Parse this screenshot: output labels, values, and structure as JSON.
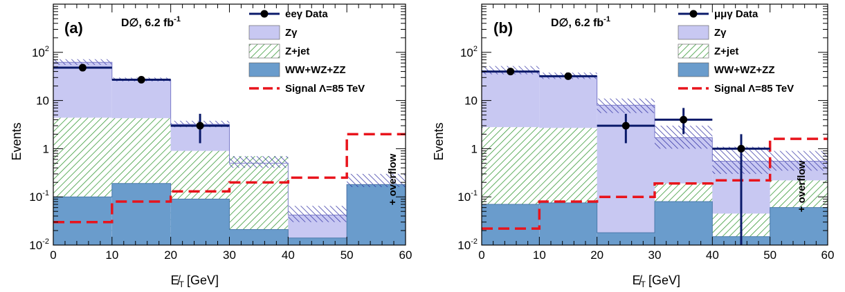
{
  "chart_data": [
    {
      "type": "histogram",
      "panel_label": "(a)",
      "experiment_label": "D∅, 6.2 fb",
      "experiment_label_sup": "-1",
      "xlabel": "E̸",
      "xlabel_sub": "T",
      "xlabel_unit": "[GeV]",
      "ylabel": "Events",
      "y_scale": "log",
      "xlim": [
        0,
        60
      ],
      "ylim": [
        0.01,
        1000
      ],
      "bin_edges": [
        0,
        10,
        20,
        30,
        40,
        50,
        60
      ],
      "x_ticks": [
        "0",
        "10",
        "20",
        "30",
        "40",
        "50",
        "60"
      ],
      "y_ticks": [
        {
          "base": "10",
          "exp": "-2",
          "value": 0.01
        },
        {
          "base": "10",
          "exp": "-1",
          "value": 0.1
        },
        {
          "base": "1",
          "exp": "",
          "value": 1
        },
        {
          "base": "10",
          "exp": "",
          "value": 10
        },
        {
          "base": "10",
          "exp": "2",
          "value": 100
        }
      ],
      "stack": {
        "wwwzzz": [
          0.1,
          0.19,
          0.09,
          0.021,
          0.014,
          0.18
        ],
        "zjet_cumulative": [
          4.4,
          4.3,
          0.9,
          0.7,
          0.014,
          0.18
        ],
        "zgamma_cumulative": [
          62,
          27,
          3.2,
          0.5,
          0.042,
          0.18
        ]
      },
      "uncertainty_band": [
        [
          55,
          72
        ],
        [
          25,
          30
        ],
        [
          2.8,
          3.8
        ],
        [
          0.4,
          0.7
        ],
        [
          0.03,
          0.065
        ],
        [
          0.16,
          0.3
        ]
      ],
      "data_points": {
        "x": [
          5,
          15,
          25
        ],
        "y": [
          48,
          27,
          3
        ],
        "y_err_low": [
          0,
          0,
          1.7
        ],
        "y_err_high": [
          0,
          0,
          2.3
        ],
        "bin_lines": [
          48,
          27,
          3
        ]
      },
      "signal": [
        0.03,
        0.08,
        0.13,
        0.2,
        0.25,
        2.0
      ],
      "overflow_label": "+ overflow",
      "legend": [
        {
          "label": "eeγ Data",
          "kind": "data"
        },
        {
          "label": "Zγ",
          "kind": "zgamma"
        },
        {
          "label": "Z+jet",
          "kind": "zjet"
        },
        {
          "label": "WW+WZ+ZZ",
          "kind": "wwwzzz"
        },
        {
          "label": "Signal Λ=85 TeV",
          "kind": "signal"
        }
      ]
    },
    {
      "type": "histogram",
      "panel_label": "(b)",
      "experiment_label": "D∅, 6.2 fb",
      "experiment_label_sup": "-1",
      "xlabel": "E̸",
      "xlabel_sub": "T",
      "xlabel_unit": "[GeV]",
      "ylabel": "Events",
      "y_scale": "log",
      "xlim": [
        0,
        60
      ],
      "ylim": [
        0.01,
        1000
      ],
      "bin_edges": [
        0,
        10,
        20,
        30,
        40,
        50,
        60
      ],
      "x_ticks": [
        "0",
        "10",
        "20",
        "30",
        "40",
        "50",
        "60"
      ],
      "y_ticks": [
        {
          "base": "10",
          "exp": "-2",
          "value": 0.01
        },
        {
          "base": "10",
          "exp": "-1",
          "value": 0.1
        },
        {
          "base": "1",
          "exp": "",
          "value": 1
        },
        {
          "base": "10",
          "exp": "",
          "value": 10
        },
        {
          "base": "10",
          "exp": "2",
          "value": 100
        }
      ],
      "stack": {
        "wwwzzz": [
          0.07,
          0.075,
          0.018,
          0.08,
          0.015,
          0.06
        ],
        "zjet_cumulative": [
          2.8,
          2.7,
          0.018,
          0.19,
          0.045,
          0.22
        ],
        "zgamma_cumulative": [
          40,
          32,
          8,
          1.7,
          0.55,
          0.55
        ]
      },
      "uncertainty_band": [
        [
          35,
          52
        ],
        [
          28,
          38
        ],
        [
          5.5,
          11
        ],
        [
          1,
          3
        ],
        [
          0.3,
          1.1
        ],
        [
          0.35,
          0.9
        ]
      ],
      "data_points": {
        "x": [
          5,
          15,
          25,
          35,
          45
        ],
        "y": [
          40,
          32,
          3,
          4,
          1
        ],
        "y_err_low": [
          0,
          0,
          1.7,
          2.0,
          0.99
        ],
        "y_err_high": [
          0,
          0,
          2.3,
          3.0,
          1.0
        ],
        "bin_lines": [
          40,
          32,
          3,
          4,
          1
        ]
      },
      "signal": [
        0.022,
        0.08,
        0.1,
        0.19,
        0.22,
        1.6
      ],
      "overflow_label": "+ overflow",
      "legend": [
        {
          "label": "μμγ Data",
          "kind": "data"
        },
        {
          "label": "Zγ",
          "kind": "zgamma"
        },
        {
          "label": "Z+jet",
          "kind": "zjet"
        },
        {
          "label": "WW+WZ+ZZ",
          "kind": "wwwzzz"
        },
        {
          "label": "Signal Λ=85 TeV",
          "kind": "signal"
        }
      ]
    }
  ],
  "colors": {
    "zgamma": "#c8c8f2",
    "zjet_hatch": "#3a9a3a",
    "wwwzzz": "#6a9ccc",
    "band_hatch": "#2a2aa0",
    "data": "#000000",
    "data_line": "#0a1a6a",
    "signal": "#e8141c"
  }
}
